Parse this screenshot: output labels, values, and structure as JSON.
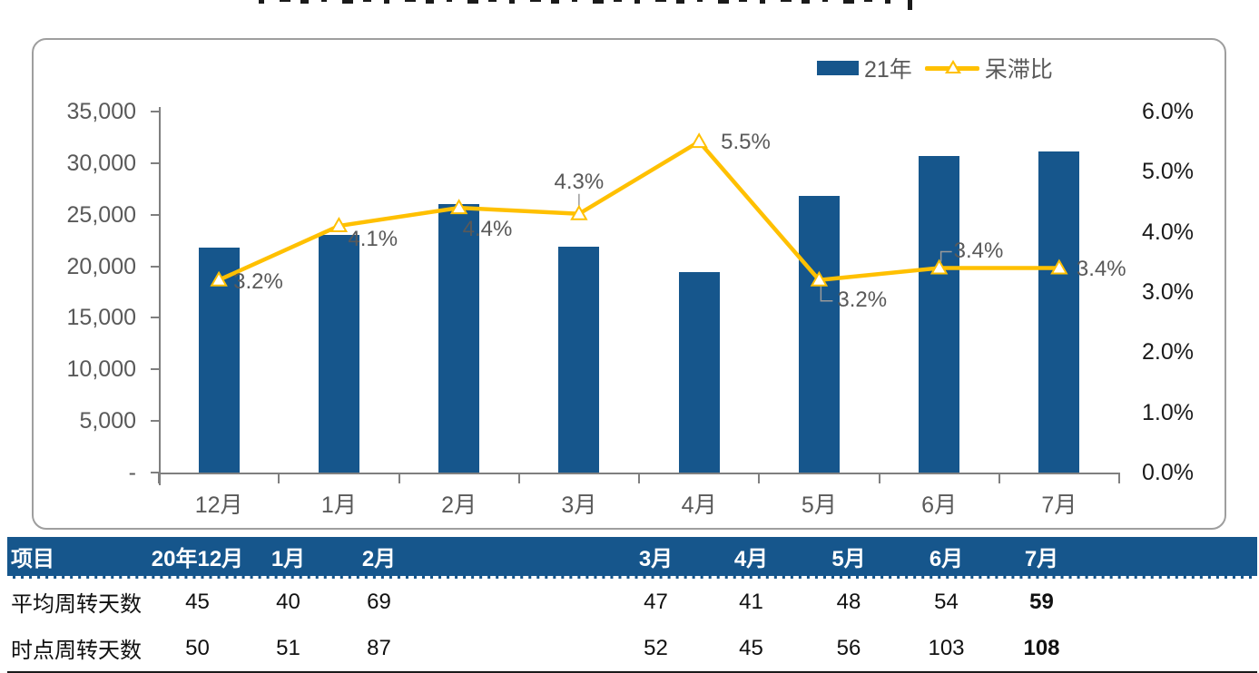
{
  "clipped_title_present": true,
  "chart_data": {
    "type": "combo",
    "categories": [
      "12月",
      "1月",
      "2月",
      "3月",
      "4月",
      "5月",
      "6月",
      "7月"
    ],
    "series": [
      {
        "name": "21年",
        "type": "bar",
        "axis": "left",
        "values": [
          21800,
          23000,
          26000,
          21900,
          19400,
          26800,
          30700,
          31100
        ]
      },
      {
        "name": "呆滞比",
        "type": "line",
        "axis": "right",
        "values": [
          3.2,
          4.1,
          4.4,
          4.3,
          5.5,
          3.2,
          3.4,
          3.4
        ],
        "point_labels": [
          "3.2%",
          "4.1%",
          "4.4%",
          "4.3%",
          "5.5%",
          "3.2%",
          "3.4%",
          "3.4%"
        ]
      }
    ],
    "left_axis": {
      "ticks": [
        "35,000",
        "30,000",
        "25,000",
        "20,000",
        "15,000",
        "10,000",
        "5,000",
        "-"
      ],
      "min": 0,
      "max": 35000
    },
    "right_axis": {
      "ticks": [
        "6.0%",
        "5.0%",
        "4.0%",
        "3.0%",
        "2.0%",
        "1.0%",
        "0.0%"
      ],
      "min": 0,
      "max": 6
    },
    "grid": false,
    "legend_position": "top-right"
  },
  "colors": {
    "bar_blue": "#16568C",
    "line_yellow": "#FFC000",
    "axis_text_gray": "#595959",
    "right_axis_text": "#1a1a1a",
    "table_header_bg": "#16568C",
    "table_header_text": "#ffffff"
  },
  "table": {
    "headers": [
      "项目",
      "20年12月",
      "1月",
      "2月",
      "3月",
      "4月",
      "5月",
      "6月",
      "7月"
    ],
    "rows": [
      {
        "label": "平均周转天数",
        "values": [
          "45",
          "40",
          "69",
          "47",
          "41",
          "48",
          "54",
          "59"
        ]
      },
      {
        "label": "时点周转天数",
        "values": [
          "50",
          "51",
          "87",
          "52",
          "45",
          "56",
          "103",
          "108"
        ]
      }
    ]
  }
}
